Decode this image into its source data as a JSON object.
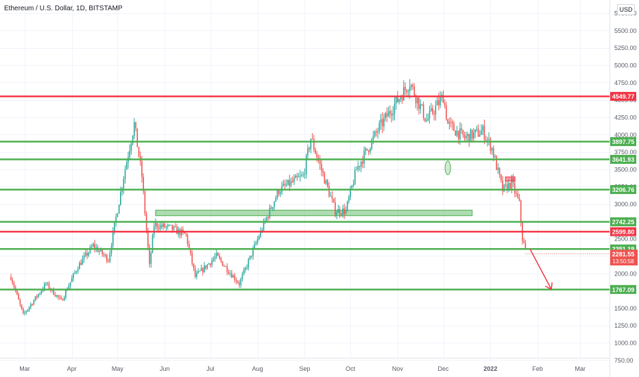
{
  "header": {
    "title": "Ethereum / U.S. Dollar, 1D, BITSTAMP",
    "currency": "USD"
  },
  "colors": {
    "up": "#26a69a",
    "down": "#ef5350",
    "support": "#4caf50",
    "resistance": "#f23645",
    "grid": "#f0f3fa",
    "axis_text": "#555a64"
  },
  "chart_data": {
    "type": "candlestick",
    "symbol": "Ethereum / U.S. Dollar",
    "interval": "1D",
    "exchange": "BITSTAMP",
    "x_labels": [
      "Mar",
      "Apr",
      "May",
      "Jun",
      "Jul",
      "Aug",
      "Sep",
      "Oct",
      "Nov",
      "Dec",
      "2022",
      "Feb",
      "Mar"
    ],
    "x_label_dates": [
      "2021-03-01",
      "2021-04-01",
      "2021-05-01",
      "2021-06-01",
      "2021-07-01",
      "2021-08-01",
      "2021-09-01",
      "2021-10-01",
      "2021-11-01",
      "2021-12-01",
      "2022-01-01",
      "2022-02-01",
      "2022-03-01"
    ],
    "y_ticks": [
      "5750.00",
      "5500.00",
      "5250.00",
      "5000.00",
      "4750.00",
      "4500.00",
      "4250.00",
      "4000.00",
      "3750.00",
      "3500.00",
      "3250.00",
      "3000.00",
      "2750.00",
      "2500.00",
      "2250.00",
      "2000.00",
      "1750.00",
      "1500.00",
      "1250.00",
      "1000.00",
      "750.00"
    ],
    "y_range": [
      700,
      5900
    ],
    "horizontal_levels": [
      {
        "value": 4549.77,
        "label": "4549.77",
        "kind": "resistance"
      },
      {
        "value": 3897.75,
        "label": "3897.75",
        "kind": "support"
      },
      {
        "value": 3641.93,
        "label": "3641.93",
        "kind": "support"
      },
      {
        "value": 3206.76,
        "label": "3206.76",
        "kind": "support"
      },
      {
        "value": 2742.25,
        "label": "2742.25",
        "kind": "support"
      },
      {
        "value": 2599.8,
        "label": "2599.80",
        "kind": "resistance"
      },
      {
        "value": 2351.19,
        "label": "2351.19",
        "kind": "support"
      },
      {
        "value": 1767.09,
        "label": "1767.09",
        "kind": "support"
      }
    ],
    "last_price": {
      "value": 2281.55,
      "label": "2281.55",
      "countdown": "13:50:58"
    },
    "zone": {
      "from": "2021-05-26",
      "to": "2021-12-20",
      "low": 2830,
      "high": 2910
    },
    "trend_anchors": [
      [
        "2021-02-20",
        1950
      ],
      [
        "2021-02-28",
        1400
      ],
      [
        "2021-03-15",
        1850
      ],
      [
        "2021-03-25",
        1600
      ],
      [
        "2021-04-05",
        2100
      ],
      [
        "2021-04-15",
        2400
      ],
      [
        "2021-04-25",
        2200
      ],
      [
        "2021-05-05",
        3400
      ],
      [
        "2021-05-12",
        4150
      ],
      [
        "2021-05-17",
        3400
      ],
      [
        "2021-05-22",
        2100
      ],
      [
        "2021-05-25",
        2700
      ],
      [
        "2021-06-05",
        2650
      ],
      [
        "2021-06-15",
        2550
      ],
      [
        "2021-06-21",
        1950
      ],
      [
        "2021-07-05",
        2250
      ],
      [
        "2021-07-20",
        1850
      ],
      [
        "2021-08-05",
        2700
      ],
      [
        "2021-08-15",
        3200
      ],
      [
        "2021-08-31",
        3400
      ],
      [
        "2021-09-05",
        3950
      ],
      [
        "2021-09-21",
        2900
      ],
      [
        "2021-09-28",
        2900
      ],
      [
        "2021-10-05",
        3500
      ],
      [
        "2021-10-20",
        4100
      ],
      [
        "2021-10-29",
        4400
      ],
      [
        "2021-11-09",
        4750
      ],
      [
        "2021-11-20",
        4200
      ],
      [
        "2021-12-01",
        4550
      ],
      [
        "2021-12-04",
        4150
      ],
      [
        "2021-12-15",
        3950
      ],
      [
        "2021-12-27",
        4050
      ],
      [
        "2022-01-02",
        3800
      ],
      [
        "2022-01-09",
        3200
      ],
      [
        "2022-01-15",
        3300
      ],
      [
        "2022-01-20",
        3000
      ],
      [
        "2022-01-22",
        2500
      ],
      [
        "2022-01-24",
        2330
      ]
    ],
    "annotations": [
      {
        "type": "arrow",
        "from": [
          "2022-01-27",
          2350
        ],
        "to": [
          "2022-02-10",
          1770
        ],
        "color": "#f23645"
      },
      {
        "type": "ellipse",
        "at": [
          "2021-12-04",
          3520
        ],
        "color": "#4caf50"
      },
      {
        "type": "box",
        "at": [
          "2022-01-14",
          3360
        ],
        "color": "#f23645"
      }
    ]
  }
}
